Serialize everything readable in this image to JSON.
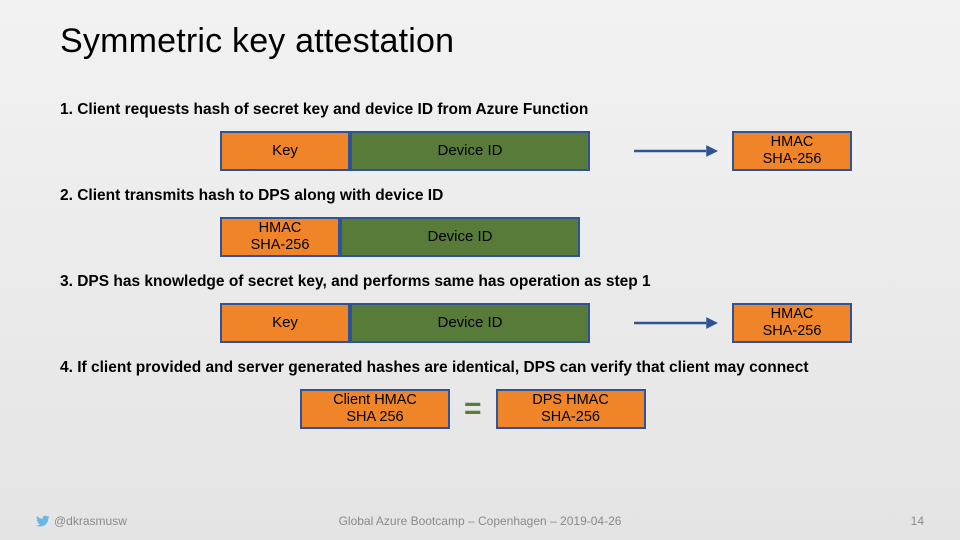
{
  "title": "Symmetric key attestation",
  "colors": {
    "key_fill": "#ef8528",
    "key_border": "#2f5496",
    "devid_fill": "#587b39",
    "devid_border": "#2f5496",
    "hmac_fill": "#ef8528",
    "hmac_border": "#2f5496",
    "arrow": "#2f5496",
    "equals": "#587b39",
    "text": "#000000"
  },
  "box_widths": {
    "key": 130,
    "devid": 240,
    "hmac": 120,
    "client_hmac": 150,
    "dps_hmac": 150
  },
  "border_width": 2,
  "steps": [
    {
      "text": "1. Client requests hash of secret key and device ID from Azure Function",
      "boxes": [
        {
          "kind": "key",
          "label": "Key"
        },
        {
          "kind": "devid",
          "label": "Device ID"
        }
      ],
      "arrow_to": {
        "kind": "hmac",
        "label_l1": "HMAC",
        "label_l2": "SHA-256"
      }
    },
    {
      "text": "2. Client transmits hash to DPS along with device ID",
      "boxes": [
        {
          "kind": "hmac",
          "label_l1": "HMAC",
          "label_l2": "SHA-256"
        },
        {
          "kind": "devid",
          "label": "Device ID"
        }
      ]
    },
    {
      "text": "3. DPS has knowledge of secret key, and performs same has operation as step 1",
      "boxes": [
        {
          "kind": "key",
          "label": "Key"
        },
        {
          "kind": "devid",
          "label": "Device ID"
        }
      ],
      "arrow_to": {
        "kind": "hmac",
        "label_l1": "HMAC",
        "label_l2": "SHA-256"
      }
    },
    {
      "text": "4. If client provided and server generated hashes are identical, DPS can verify that client may connect",
      "compare": {
        "left": {
          "kind": "client_hmac",
          "label_l1": "Client HMAC",
          "label_l2": "SHA 256"
        },
        "right": {
          "kind": "dps_hmac",
          "label_l1": "DPS HMAC",
          "label_l2": "SHA-256"
        }
      }
    }
  ],
  "footer": {
    "handle": "@dkrasmusw",
    "event": "Global Azure Bootcamp – Copenhagen – 2019-04-26",
    "page": "14"
  }
}
